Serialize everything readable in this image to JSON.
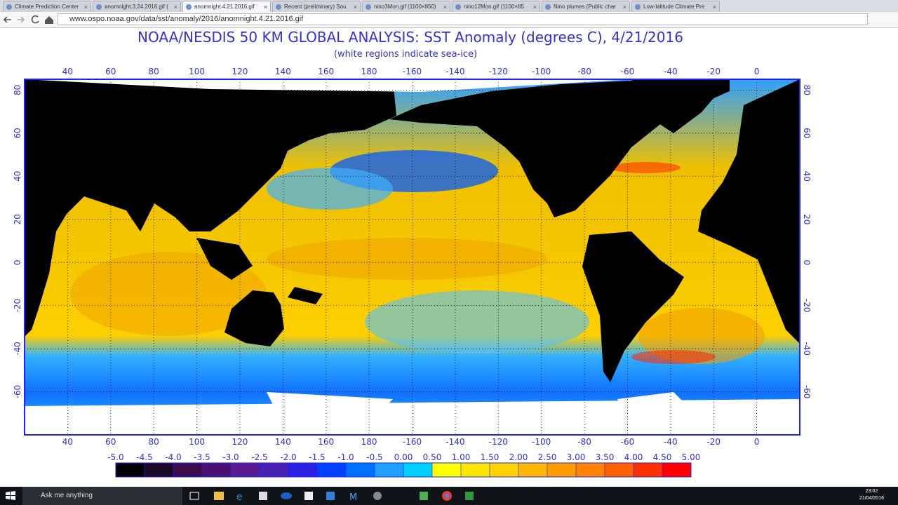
{
  "browser": {
    "tabs": [
      "Climate Prediction Center",
      "anomnight.3.24.2016.gif (",
      "anomnight.4.21.2016.gif",
      "Recent (preliminary) Sou",
      "nino3Mon.gif (1100×850)",
      "nino12Mon.gif (1100×85",
      "Nino plumes (Public char",
      "Low-latitude Climate Pre"
    ],
    "active_tab": 2,
    "url": "www.ospo.noaa.gov/data/sst/anomaly/2016/anomnight.4.21.2016.gif"
  },
  "page": {
    "title": "NOAA/NESDIS 50 KM GLOBAL ANALYSIS: SST Anomaly (degrees C), 4/21/2016",
    "subtitle": "(white regions indicate sea-ice)",
    "map": {
      "lon_range": [
        20,
        380
      ],
      "lat_range": [
        -80,
        85
      ],
      "lon_ticks": [
        40,
        60,
        80,
        100,
        120,
        140,
        160,
        180,
        -160,
        -140,
        -120,
        -100,
        -80,
        -60,
        -40,
        -20,
        0
      ],
      "lat_ticks": [
        80,
        60,
        40,
        20,
        0,
        -20,
        -40,
        -60
      ]
    },
    "colorbar": {
      "ticks": [
        {
          "value": -5,
          "label": "-5.0"
        },
        -4.5,
        {
          "value": -4,
          "label": "-4.0"
        },
        -3.5,
        {
          "value": -3,
          "label": "-3.0"
        },
        -2.5,
        {
          "value": -2,
          "label": "-2.0"
        },
        -1.5,
        {
          "value": -1,
          "label": "-1.0"
        },
        -0.5,
        {
          "value": 0,
          "label": "0.00"
        },
        {
          "value": 0.5,
          "label": "0.50"
        },
        {
          "value": 1,
          "label": "1.00"
        },
        {
          "value": 1.5,
          "label": "1.50"
        },
        {
          "value": 2,
          "label": "2.00"
        },
        {
          "value": 2.5,
          "label": "2.50"
        },
        {
          "value": 3,
          "label": "3.00"
        },
        {
          "value": 3.5,
          "label": "3.50"
        },
        {
          "value": 4,
          "label": "4.00"
        },
        {
          "value": 4.5,
          "label": "4.50"
        },
        {
          "value": 5,
          "label": "5.00"
        }
      ],
      "colors": [
        "#000000",
        "#1e0626",
        "#3a0a4a",
        "#4a1070",
        "#5a1a90",
        "#4a20b0",
        "#2a20e0",
        "#0040ff",
        "#0070ff",
        "#20a0ff",
        "#00d0ff",
        "#ffff00",
        "#ffe600",
        "#ffd200",
        "#ffb800",
        "#ff9c00",
        "#ff8200",
        "#ff6000",
        "#ff3000",
        "#ff0000"
      ]
    }
  },
  "taskbar": {
    "search": "Ask me anything",
    "time": "23:02",
    "date": "21/04/2016"
  }
}
